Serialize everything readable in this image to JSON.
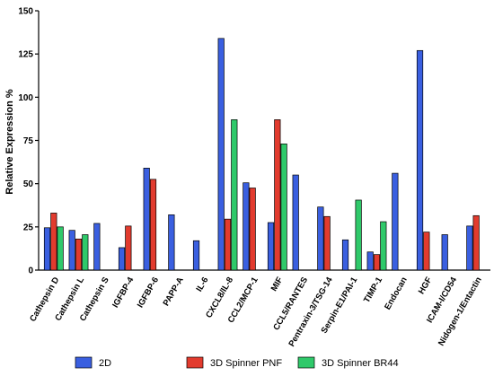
{
  "chart_data": {
    "type": "bar",
    "title": "",
    "xlabel": "",
    "ylabel": "Relative Expression %",
    "ylim": [
      0,
      150
    ],
    "yticks": [
      0,
      25,
      50,
      75,
      100,
      125,
      150
    ],
    "grid": false,
    "legend_position": "bottom",
    "categories": [
      "Cathepsin D",
      "Cathepsin L",
      "Cathepsin S",
      "IGFBP-4",
      "IGFBP-6",
      "PAPP-A",
      "IL-6",
      "CXCL8/IL-8",
      "CCL2/MCP-1",
      "MIF",
      "CCL5/RANTES",
      "Pentraxin-3/TSG-14",
      "Serpin-E1/PAI-1",
      "TIMP-1",
      "Endocan",
      "HGF",
      "ICAM-I/CD54",
      "Nidogen-1/Entactin"
    ],
    "series": [
      {
        "name": "2D",
        "color": "#3a5fe0",
        "values": [
          24.5,
          23,
          27,
          13,
          59,
          32,
          17,
          134,
          50.5,
          27.5,
          55,
          36.5,
          17.5,
          10.5,
          56,
          127,
          20.5,
          25.5
        ]
      },
      {
        "name": "3D Spinner PNF",
        "color": "#e23b2e",
        "values": [
          33,
          18,
          null,
          25.5,
          52.5,
          null,
          null,
          29.5,
          47.5,
          87,
          null,
          31,
          null,
          9,
          null,
          22,
          null,
          31.5
        ]
      },
      {
        "name": "3D Spinner BR44",
        "color": "#2fc96a",
        "values": [
          25,
          20.5,
          null,
          null,
          null,
          null,
          null,
          87,
          null,
          73,
          null,
          null,
          40.5,
          28,
          null,
          null,
          null,
          null
        ]
      }
    ]
  }
}
